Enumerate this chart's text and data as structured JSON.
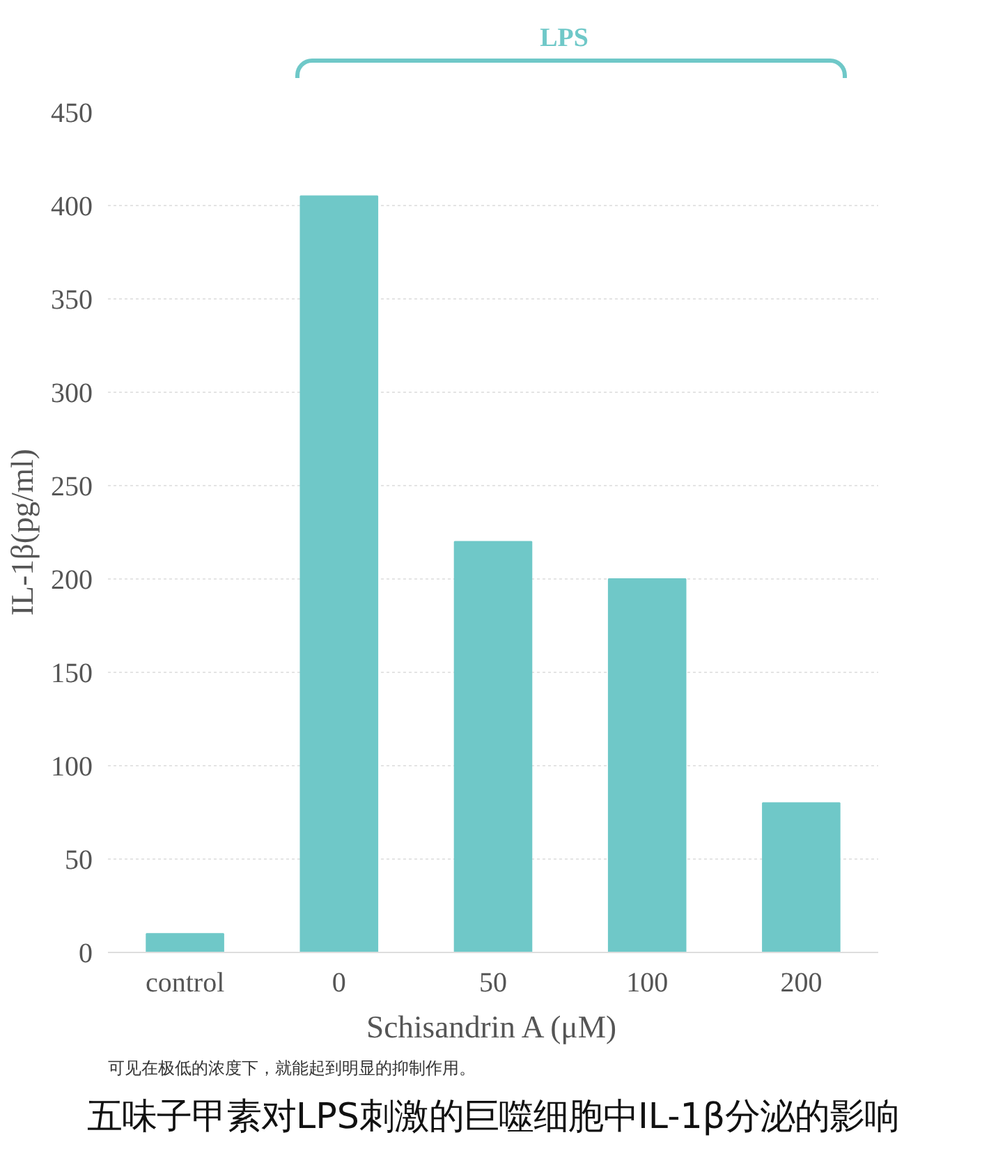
{
  "chart_data": {
    "type": "bar",
    "title": "五味子甲素对LPS刺激的巨噬细胞中IL-1β分泌的影响",
    "xlabel": "Schisandrin A (μM)",
    "ylabel": "IL-1β(pg/ml)",
    "categories": [
      "control",
      "0",
      "50",
      "100",
      "200"
    ],
    "values": [
      10,
      405,
      220,
      200,
      80
    ],
    "color": "#6fc8c8",
    "ylim": [
      0,
      450
    ],
    "yticks": [
      0,
      50,
      100,
      150,
      200,
      250,
      300,
      350,
      400,
      450
    ],
    "grid": "y",
    "annotations": [
      "LPS",
      "可见在极低的浓度下，就能起到明显的抑制作用。"
    ]
  }
}
